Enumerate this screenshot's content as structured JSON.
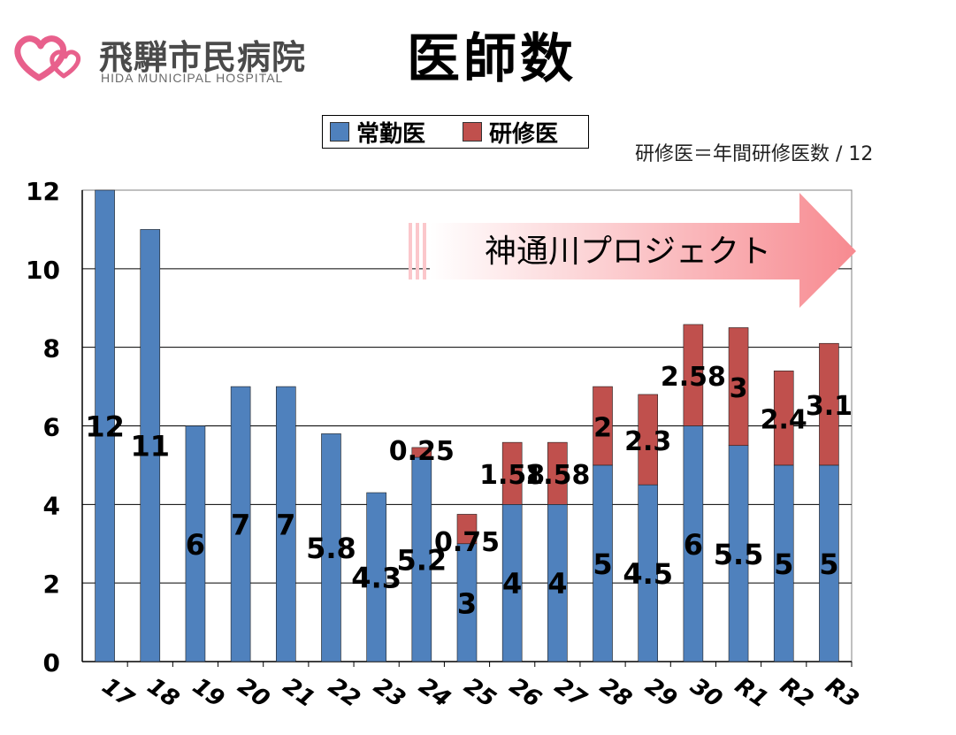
{
  "logo": {
    "name": "飛騨市民病院",
    "subtitle": "HIDA MUNICIPAL HOSPITAL",
    "colors": {
      "heart": "#e8608c"
    }
  },
  "page_title": "医師数",
  "note": "研修医＝年間研修医数 / 12",
  "project_banner": {
    "label": "神通川プロジェクト",
    "color": "#f78a90"
  },
  "colors": {
    "regular": "#4f81bd",
    "resident": "#c0504d"
  },
  "chart_data": {
    "type": "bar",
    "stacked": true,
    "categories": [
      "17",
      "18",
      "19",
      "20",
      "21",
      "22",
      "23",
      "24",
      "25",
      "26",
      "27",
      "28",
      "29",
      "30",
      "R1",
      "R2",
      "R3"
    ],
    "series": [
      {
        "name": "常勤医",
        "color": "#4f81bd",
        "values": [
          12,
          11,
          6,
          7,
          7,
          5.8,
          4.3,
          5.2,
          3,
          4,
          4,
          5,
          4.5,
          6,
          5.5,
          5,
          5
        ],
        "labels": [
          "12",
          "11",
          "6",
          "7",
          "7",
          "5.8",
          "4.3",
          "5.2",
          "3",
          "4",
          "4",
          "5",
          "4.5",
          "6",
          "5.5",
          "5",
          "5"
        ]
      },
      {
        "name": "研修医",
        "color": "#c0504d",
        "values": [
          0,
          0,
          0,
          0,
          0,
          0,
          0,
          0.25,
          0.75,
          1.58,
          1.58,
          2,
          2.3,
          2.58,
          3,
          2.4,
          3.1
        ],
        "labels": [
          "",
          "",
          "",
          "",
          "",
          "",
          "",
          "0.25",
          "0.75",
          "1.58",
          "1.58",
          "2",
          "2.3",
          "2.58",
          "3",
          "2.4",
          "3.1"
        ]
      }
    ],
    "ylim": [
      0,
      12
    ],
    "yticks": [
      0,
      2,
      4,
      6,
      8,
      10,
      12
    ],
    "ytick_labels": [
      "0",
      "2",
      "4",
      "6",
      "8",
      "10",
      "12"
    ],
    "grid": true,
    "legend": "top-center"
  }
}
